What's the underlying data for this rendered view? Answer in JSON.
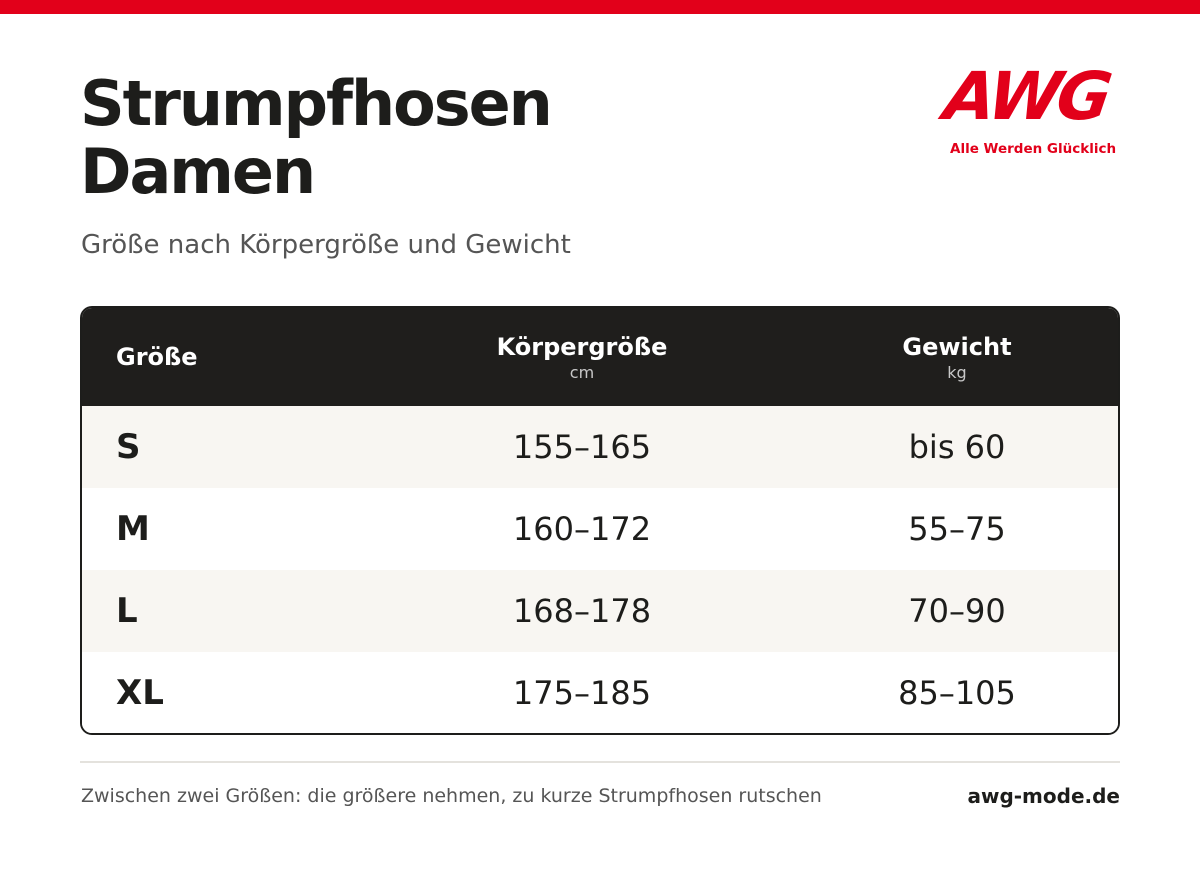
{
  "header": {
    "title_line1": "Strumpfhosen",
    "title_line2": "Damen",
    "subtitle": "Größe nach Körpergröße und Gewicht"
  },
  "brand": {
    "logo_text": "AWG",
    "tagline": "Alle Werden Glücklich",
    "color": "#e2001a"
  },
  "table": {
    "columns": [
      {
        "label": "Größe",
        "unit": ""
      },
      {
        "label": "Körpergröße",
        "unit": "cm"
      },
      {
        "label": "Gewicht",
        "unit": "kg"
      }
    ],
    "rows": [
      {
        "size": "S",
        "height": "155–165",
        "weight": "bis 60"
      },
      {
        "size": "M",
        "height": "160–172",
        "weight": "55–75"
      },
      {
        "size": "L",
        "height": "168–178",
        "weight": "70–90"
      },
      {
        "size": "XL",
        "height": "175–185",
        "weight": "85–105"
      }
    ]
  },
  "footer": {
    "note": "Zwischen zwei Größen: die größere nehmen, zu kurze Strumpfhosen rutschen",
    "url": "awg-mode.de"
  }
}
